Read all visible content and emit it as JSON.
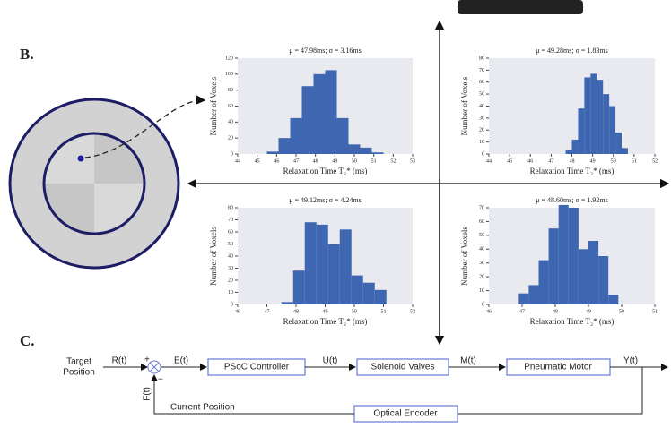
{
  "figure": {
    "panel_b_label": "B.",
    "panel_c_label": "C."
  },
  "chart_data": [
    {
      "type": "histogram",
      "title": "μ = 47.98ms; σ = 3.16ms",
      "xlabel": "Relaxation Time T₂* (ms)",
      "ylabel": "Number of Voxels",
      "bins": [
        45.5,
        46.1,
        46.7,
        47.3,
        47.9,
        48.5,
        49.1,
        49.7,
        50.3,
        50.9,
        51.5
      ],
      "values": [
        3,
        20,
        45,
        85,
        100,
        105,
        45,
        12,
        8,
        2
      ],
      "color": "#3f67b1",
      "xlim": [
        44,
        53
      ],
      "xticks": [
        44,
        45,
        46,
        47,
        48,
        49,
        50,
        51,
        52,
        53
      ],
      "ylim": [
        0,
        120
      ],
      "yticks": [
        0,
        20,
        40,
        60,
        80,
        100,
        120
      ]
    },
    {
      "type": "histogram",
      "title": "μ = 49.28ms; σ = 1.83ms",
      "xlabel": "Relaxation Time T₂* (ms)",
      "ylabel": "Number of Voxels",
      "bins": [
        47.7,
        48.0,
        48.3,
        48.6,
        48.9,
        49.2,
        49.5,
        49.8,
        50.1,
        50.4,
        50.7
      ],
      "values": [
        3,
        12,
        38,
        64,
        67,
        62,
        50,
        40,
        18,
        5
      ],
      "color": "#3f67b1",
      "xlim": [
        44,
        52
      ],
      "xticks": [
        44,
        45,
        46,
        47,
        48,
        49,
        50,
        51,
        52
      ],
      "ylim": [
        0,
        80
      ],
      "yticks": [
        0,
        10,
        20,
        30,
        40,
        50,
        60,
        70,
        80
      ]
    },
    {
      "type": "histogram",
      "title": "μ = 49.12ms; σ = 4.24ms",
      "xlabel": "Relaxation Time T₂* (ms)",
      "ylabel": "Number of Voxels",
      "bins": [
        47.5,
        47.9,
        48.3,
        48.7,
        49.1,
        49.5,
        49.9,
        50.3,
        50.7,
        51.1
      ],
      "values": [
        2,
        28,
        68,
        66,
        50,
        62,
        24,
        18,
        12
      ],
      "color": "#3f67b1",
      "xlim": [
        46,
        52
      ],
      "xticks": [
        46,
        47,
        48,
        49,
        50,
        51,
        52
      ],
      "ylim": [
        0,
        80
      ],
      "yticks": [
        0,
        10,
        20,
        30,
        40,
        50,
        60,
        70,
        80
      ]
    },
    {
      "type": "histogram",
      "title": "μ = 48.60ms; σ = 1.92ms",
      "xlabel": "Relaxation Time T₂* (ms)",
      "ylabel": "Number of Voxels",
      "bins": [
        46.9,
        47.2,
        47.5,
        47.8,
        48.1,
        48.4,
        48.7,
        49.0,
        49.3,
        49.6,
        49.9
      ],
      "values": [
        8,
        14,
        32,
        55,
        72,
        70,
        40,
        46,
        35,
        7
      ],
      "color": "#3f67b1",
      "xlim": [
        46,
        51
      ],
      "xticks": [
        46,
        47,
        48,
        49,
        50,
        51
      ],
      "ylim": [
        0,
        70
      ],
      "yticks": [
        0,
        10,
        20,
        30,
        40,
        50,
        60,
        70
      ]
    }
  ],
  "diagram": {
    "target_position_1": "Target",
    "target_position_2": "Position",
    "r": "R(t)",
    "plus": "+",
    "minus": "−",
    "e": "E(t)",
    "controller": "PSoC Controller",
    "u": "U(t)",
    "valves": "Solenoid Valves",
    "m": "M(t)",
    "motor": "Pneumatic Motor",
    "y": "Y(t)",
    "f": "F(t)",
    "current_position": "Current Position",
    "encoder": "Optical Encoder"
  }
}
